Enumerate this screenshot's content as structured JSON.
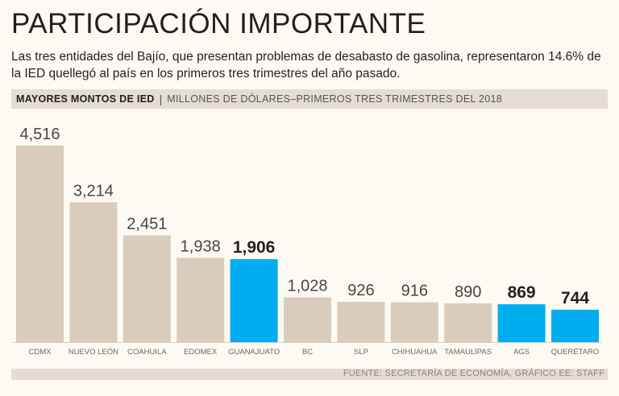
{
  "header": {
    "title": "PARTICIPACIÓN IMPORTANTE",
    "subtitle": "Las tres entidades del Bajío, que presentan problemas de desabasto de gasolina, representaron 14.6% de la IED quellegó al país en los primeros tres trimestres del año pasado."
  },
  "banner": {
    "lead": "MAYORES MONTOS DE IED",
    "separator": "|",
    "unit": "MILLONES DE DÓLARES–PRIMEROS TRES TRIMESTRES DEL 2018"
  },
  "footer": {
    "source": "FUENTE: SECRETARÍA DE ECONOMÍA, GRÁFICO EE: STAFF"
  },
  "colors": {
    "base_bar": "#d9ccbd",
    "highlight_bar": "#00aeef",
    "background": "#fdf9f3",
    "band": "#e6ddd2"
  },
  "chart_data": {
    "type": "bar",
    "title": "MAYORES MONTOS DE IED",
    "ylabel": "MILLONES DE DÓLARES",
    "categories": [
      "CDMX",
      "NUEVO LEÓN",
      "COAHUILA",
      "EDOMEX",
      "GUANAJUATO",
      "BC",
      "SLP",
      "CHIHUAHUA",
      "TAMAULIPAS",
      "AGS",
      "QUERÉTARO"
    ],
    "values": [
      4516,
      3214,
      2451,
      1938,
      1906,
      1028,
      926,
      916,
      890,
      869,
      744
    ],
    "value_labels": [
      "4,516",
      "3,214",
      "2,451",
      "1,938",
      "1,906",
      "1,028",
      "926",
      "916",
      "890",
      "869",
      "744"
    ],
    "highlighted": [
      false,
      false,
      false,
      false,
      true,
      false,
      false,
      false,
      false,
      true,
      true
    ],
    "ylim": [
      0,
      4516
    ],
    "grid": false
  }
}
